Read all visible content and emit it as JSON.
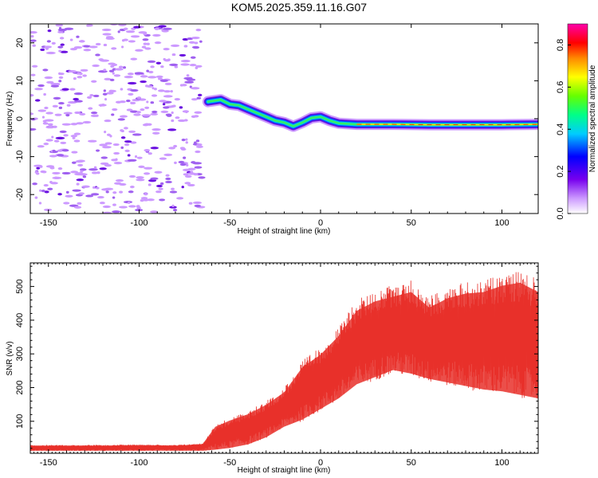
{
  "title": "KOM5.2025.359.11.16.G07",
  "chart_data": [
    {
      "type": "heatmap",
      "title": "KOM5.2025.359.11.16.G07",
      "xlabel": "Height of straight line (km)",
      "ylabel": "Frequency (Hz)",
      "xlim": [
        -160,
        120
      ],
      "ylim": [
        -25,
        25
      ],
      "xticks": [
        -150,
        -100,
        -50,
        0,
        50,
        100
      ],
      "yticks": [
        -20,
        -10,
        0,
        10,
        20
      ],
      "colorbar": {
        "label": "Normalized spectral amplitude",
        "range": [
          0,
          0.9
        ],
        "ticks": [
          0.0,
          0.2,
          0.4,
          0.6,
          0.8
        ]
      },
      "noise_region_x": [
        -160,
        -65
      ],
      "signal_trace": [
        {
          "x": -62,
          "y": 4.5
        },
        {
          "x": -55,
          "y": 5.0
        },
        {
          "x": -50,
          "y": 3.8
        },
        {
          "x": -45,
          "y": 3.5
        },
        {
          "x": -40,
          "y": 2.5
        },
        {
          "x": -35,
          "y": 1.5
        },
        {
          "x": -30,
          "y": 0.5
        },
        {
          "x": -25,
          "y": -0.5
        },
        {
          "x": -20,
          "y": -1.0
        },
        {
          "x": -15,
          "y": -2.0
        },
        {
          "x": -10,
          "y": -1.0
        },
        {
          "x": -5,
          "y": 0.2
        },
        {
          "x": 0,
          "y": 0.5
        },
        {
          "x": 5,
          "y": -0.5
        },
        {
          "x": 10,
          "y": -1.2
        },
        {
          "x": 20,
          "y": -1.5
        },
        {
          "x": 40,
          "y": -1.5
        },
        {
          "x": 60,
          "y": -1.6
        },
        {
          "x": 80,
          "y": -1.6
        },
        {
          "x": 100,
          "y": -1.6
        },
        {
          "x": 120,
          "y": -1.5
        }
      ]
    },
    {
      "type": "line",
      "title": "",
      "xlabel": "Height of straight line (km)",
      "ylabel": "SNR (v/v)",
      "xlim": [
        -160,
        120
      ],
      "ylim": [
        5,
        570
      ],
      "xticks": [
        -150,
        -100,
        -50,
        0,
        50,
        100
      ],
      "yticks": [
        100,
        200,
        300,
        400,
        500
      ],
      "color": "#e8302a",
      "envelope": [
        {
          "x": -160,
          "low": 12,
          "high": 30
        },
        {
          "x": -120,
          "low": 12,
          "high": 30
        },
        {
          "x": -100,
          "low": 12,
          "high": 32
        },
        {
          "x": -80,
          "low": 12,
          "high": 30
        },
        {
          "x": -65,
          "low": 12,
          "high": 35
        },
        {
          "x": -58,
          "low": 15,
          "high": 90
        },
        {
          "x": -50,
          "low": 20,
          "high": 110
        },
        {
          "x": -40,
          "low": 30,
          "high": 130
        },
        {
          "x": -30,
          "low": 50,
          "high": 160
        },
        {
          "x": -20,
          "low": 80,
          "high": 200
        },
        {
          "x": -10,
          "low": 100,
          "high": 280
        },
        {
          "x": 0,
          "low": 130,
          "high": 320
        },
        {
          "x": 10,
          "low": 160,
          "high": 380
        },
        {
          "x": 20,
          "low": 200,
          "high": 460
        },
        {
          "x": 30,
          "low": 220,
          "high": 490
        },
        {
          "x": 40,
          "low": 240,
          "high": 505
        },
        {
          "x": 50,
          "low": 230,
          "high": 520
        },
        {
          "x": 60,
          "low": 215,
          "high": 470
        },
        {
          "x": 70,
          "low": 205,
          "high": 500
        },
        {
          "x": 80,
          "low": 195,
          "high": 515
        },
        {
          "x": 90,
          "low": 185,
          "high": 520
        },
        {
          "x": 100,
          "low": 180,
          "high": 540
        },
        {
          "x": 110,
          "low": 170,
          "high": 550
        },
        {
          "x": 120,
          "low": 160,
          "high": 520
        }
      ]
    }
  ]
}
